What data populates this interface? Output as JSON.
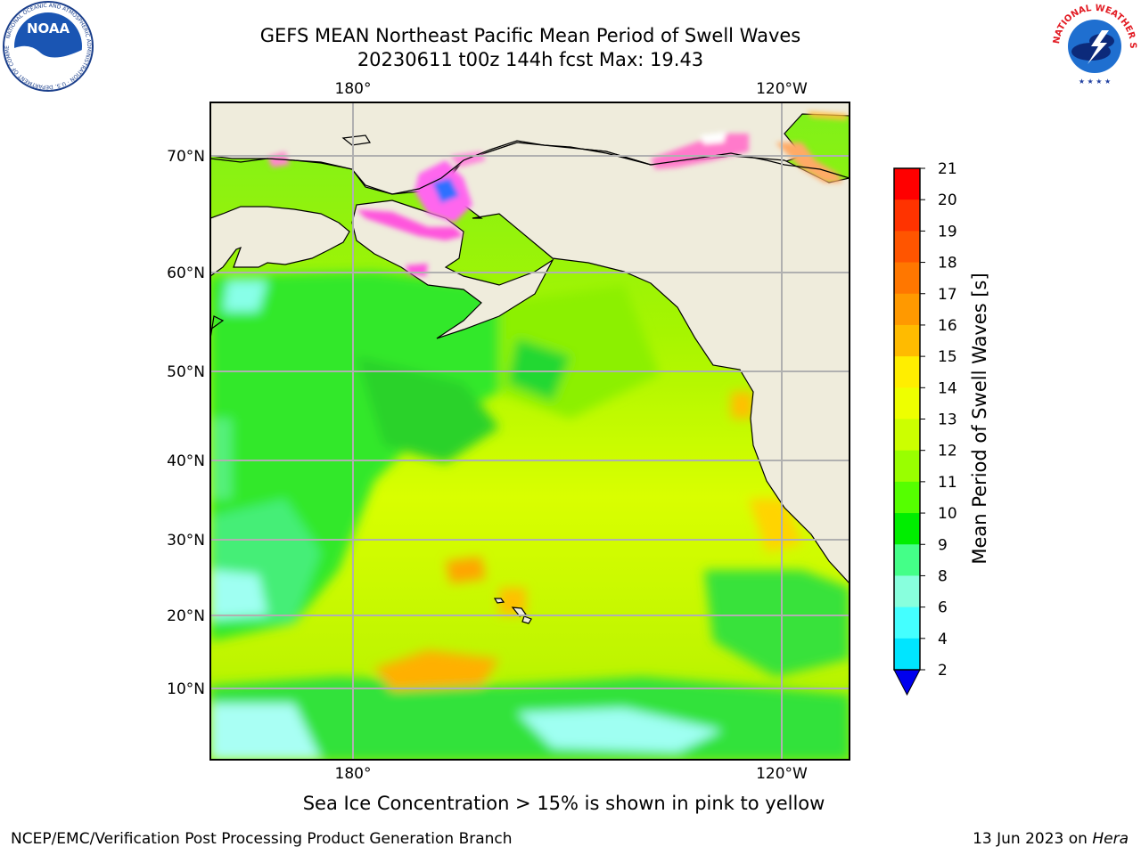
{
  "title_line1": "GEFS MEAN Northeast Pacific Mean Period of Swell Waves",
  "title_line2": "20230611 t00z 144h fcst   Max: 19.43",
  "top_axis": {
    "left_lon": "180°",
    "right_lon": "120°W"
  },
  "bottom_axis": {
    "left_lon": "180°",
    "right_lon": "120°W"
  },
  "lat_labels": [
    "70°N",
    "60°N",
    "50°N",
    "40°N",
    "30°N",
    "20°N",
    "10°N"
  ],
  "colorbar": {
    "label": "Mean Period of Swell Waves [s]",
    "ticks": [
      "21",
      "20",
      "19",
      "18",
      "17",
      "16",
      "15",
      "14",
      "13",
      "12",
      "11",
      "10",
      "9",
      "8",
      "6",
      "4",
      "2"
    ],
    "colors": [
      "#ff0000",
      "#ff3300",
      "#ff5500",
      "#ff7700",
      "#ff9900",
      "#ffbb00",
      "#ffee00",
      "#eeff00",
      "#ccff00",
      "#99ff00",
      "#55ff00",
      "#00ee00",
      "#44ff88",
      "#88ffdd",
      "#44ffff",
      "#00e5ff",
      "#0077ff"
    ],
    "under_color": "#0000ee"
  },
  "sea_ice_note": "Sea Ice Concentration > 15% is shown in pink to yellow",
  "credit_left": "NCEP/EMC/Verification Post Processing Product Generation Branch",
  "credit_right_date": "13 Jun 2023 on",
  "credit_right_host": "Hera",
  "logos": {
    "left": "NOAA",
    "right": "NATIONAL WEATHER SERVICE"
  },
  "colors": {
    "land": "#efecdc",
    "grid": "#b0b0b0",
    "frame": "#000000"
  }
}
